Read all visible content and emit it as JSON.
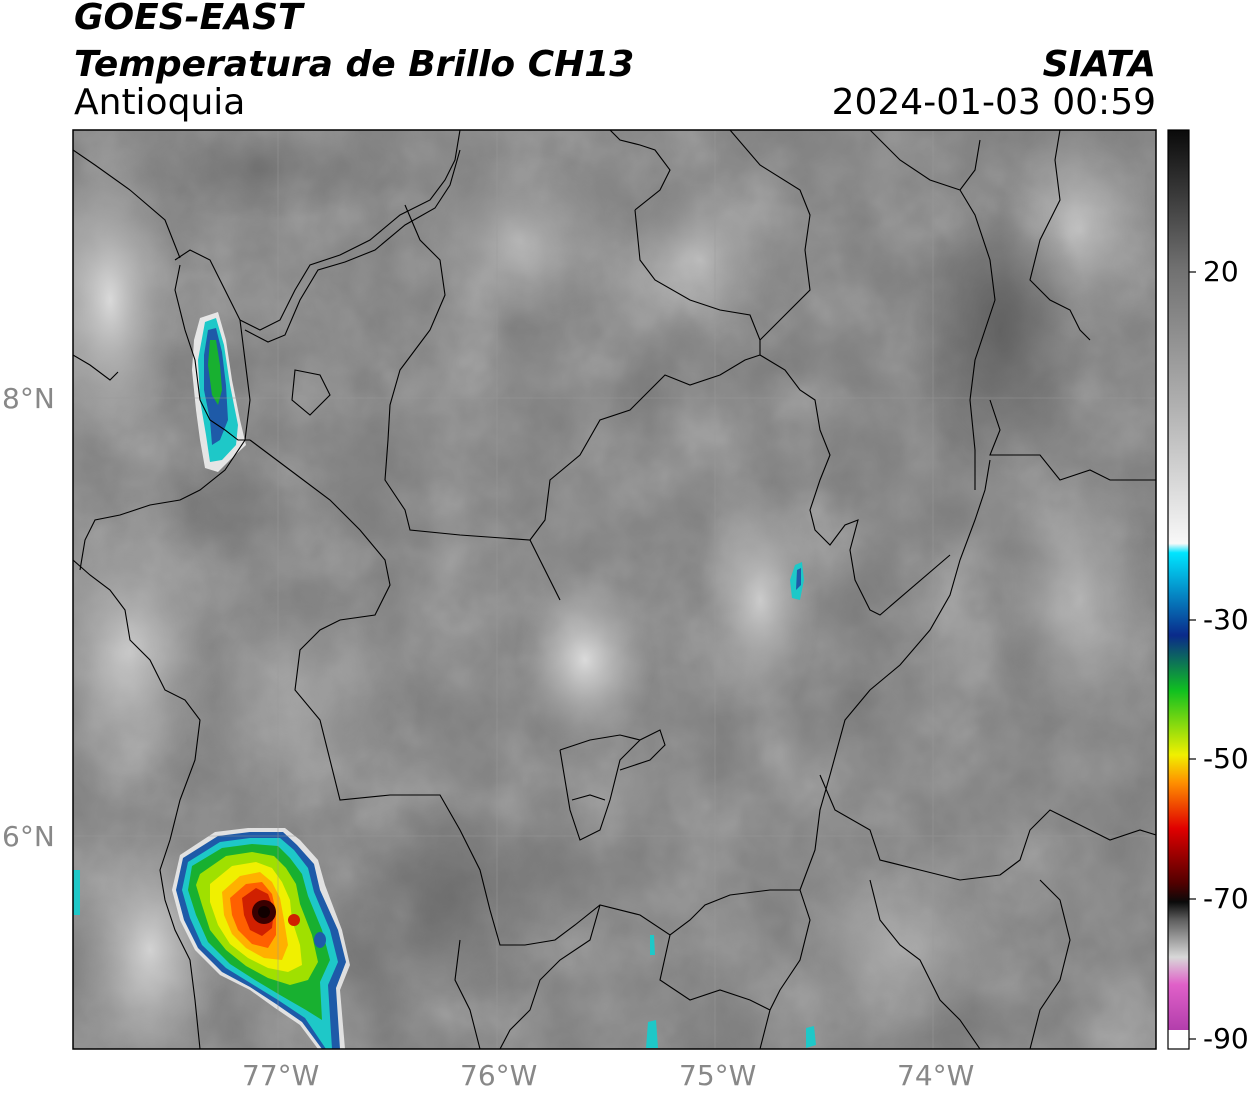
{
  "header": {
    "satellite": "GOES-EAST",
    "product": "Temperatura de Brillo CH13",
    "region": "Antioquia",
    "agency": "SIATA",
    "datetime": "2024-01-03 00:59"
  },
  "axes": {
    "longitude_ticks": [
      "77°W",
      "76°W",
      "75°W",
      "74°W"
    ],
    "latitude_ticks": [
      "8°N",
      "6°N"
    ],
    "gridlines": true
  },
  "colorbar": {
    "tick_labels": [
      "20",
      "-30",
      "-50",
      "-70",
      "-90"
    ],
    "colors": {
      "black": "#0a0a0a",
      "gray": "#808080",
      "white": "#f5f5f5",
      "cyan": "#00e5ff",
      "blue": "#0a2a8a",
      "green": "#10c020",
      "yellow": "#f0f000",
      "orange": "#ff9000",
      "red": "#e00000",
      "dark-red": "#400000",
      "magenta": "#e040c0",
      "purple": "#a030a0"
    }
  },
  "map": {
    "background_gray": "#7a7a7a",
    "storm_colors": [
      "#1e5aa8",
      "#1ec8c8",
      "#18b030",
      "#a0e000",
      "#f0f000",
      "#ffb000",
      "#ff6000",
      "#d02000",
      "#3a0000"
    ]
  }
}
